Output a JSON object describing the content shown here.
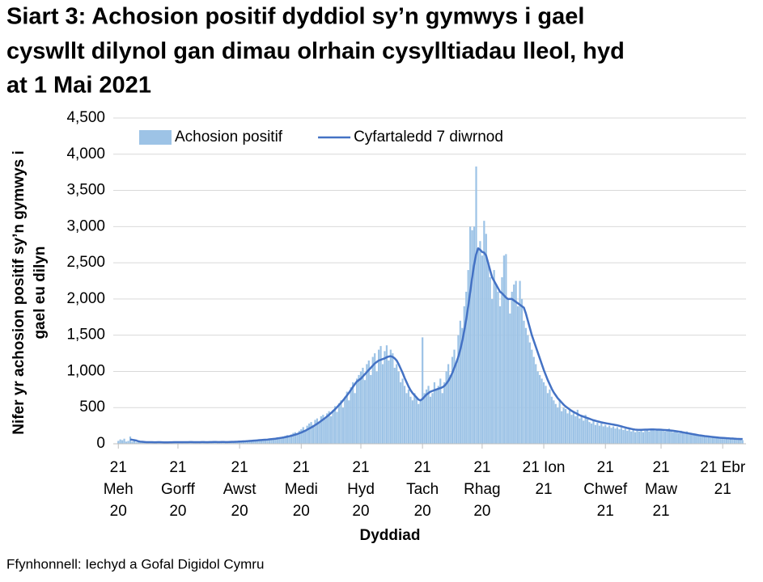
{
  "chart_data": {
    "type": "bar",
    "title": [
      "Siart 3: Achosion positif dyddiol sy’n gymwys i gael",
      "cyswllt dilynol gan dimau olrhain cysylltiadau lleol, hyd",
      "at 1 Mai 2021"
    ],
    "ylabel": [
      "Nifer yr achosion positif sy’n gymwys i",
      "gael eu dilyn"
    ],
    "xlabel": "Dyddiad",
    "source": "Ffynhonnell: Iechyd a Gofal Digidol Cymru",
    "ylim": [
      0,
      4500
    ],
    "yticks": [
      0,
      500,
      {
        "value": 1000,
        "label": "1,000"
      },
      {
        "value": 1500,
        "label": "1,500"
      },
      {
        "value": 2000,
        "label": "2,000"
      },
      {
        "value": 2500,
        "label": "2,500"
      },
      {
        "value": 3000,
        "label": "3,000"
      },
      {
        "value": 3500,
        "label": "3,500"
      },
      {
        "value": 4000,
        "label": "4,000"
      },
      {
        "value": 4500,
        "label": "4,500"
      }
    ],
    "grid": true,
    "legend": "top",
    "categories": [
      "21\nMeh\n20",
      null,
      null,
      null,
      null,
      null,
      null,
      null,
      null,
      null,
      null,
      null,
      null,
      null,
      null,
      null,
      null,
      null,
      null,
      null,
      null,
      null,
      null,
      null,
      null,
      null,
      null,
      null,
      null,
      null,
      "21\nGorff\n20",
      null,
      null,
      null,
      null,
      null,
      null,
      null,
      null,
      null,
      null,
      null,
      null,
      null,
      null,
      null,
      null,
      null,
      null,
      null,
      null,
      null,
      null,
      null,
      null,
      null,
      null,
      null,
      null,
      null,
      null,
      "21\nAwst\n20",
      null,
      null,
      null,
      null,
      null,
      null,
      null,
      null,
      null,
      null,
      null,
      null,
      null,
      null,
      null,
      null,
      null,
      null,
      null,
      null,
      null,
      null,
      null,
      null,
      null,
      null,
      null,
      null,
      null,
      null,
      "21\nMedi\n20",
      null,
      null,
      null,
      null,
      null,
      null,
      null,
      null,
      null,
      null,
      null,
      null,
      null,
      null,
      null,
      null,
      null,
      null,
      null,
      null,
      null,
      null,
      null,
      null,
      null,
      null,
      null,
      null,
      null,
      "21\nHyd\n20",
      null,
      null,
      null,
      null,
      null,
      null,
      null,
      null,
      null,
      null,
      null,
      null,
      null,
      null,
      null,
      null,
      null,
      null,
      null,
      null,
      null,
      null,
      null,
      null,
      null,
      null,
      null,
      null,
      null,
      null,
      "21\nTach\n20",
      null,
      null,
      null,
      null,
      null,
      null,
      null,
      null,
      null,
      null,
      null,
      null,
      null,
      null,
      null,
      null,
      null,
      null,
      null,
      null,
      null,
      null,
      null,
      null,
      null,
      null,
      null,
      null,
      null,
      "21\nRhag\n20",
      null,
      null,
      null,
      null,
      null,
      null,
      null,
      null,
      null,
      null,
      null,
      null,
      null,
      null,
      null,
      null,
      null,
      null,
      null,
      null,
      null,
      null,
      null,
      null,
      null,
      null,
      null,
      null,
      null,
      null,
      "21 Ion\n21",
      null,
      null,
      null,
      null,
      null,
      null,
      null,
      null,
      null,
      null,
      null,
      null,
      null,
      null,
      null,
      null,
      null,
      null,
      null,
      null,
      null,
      null,
      null,
      null,
      null,
      null,
      null,
      null,
      null,
      null,
      "21\nChwef\n21",
      null,
      null,
      null,
      null,
      null,
      null,
      null,
      null,
      null,
      null,
      null,
      null,
      null,
      null,
      null,
      null,
      null,
      null,
      null,
      null,
      null,
      null,
      null,
      null,
      null,
      null,
      null,
      "21\nMaw\n21",
      null,
      null,
      null,
      null,
      null,
      null,
      null,
      null,
      null,
      null,
      null,
      null,
      null,
      null,
      null,
      null,
      null,
      null,
      null,
      null,
      null,
      null,
      null,
      null,
      null,
      null,
      null,
      null,
      null,
      null,
      "21 Ebr\n21",
      null,
      null,
      null,
      null,
      null,
      null,
      null,
      null,
      null,
      null
    ],
    "series": [
      {
        "name": "Achosion positif",
        "type": "bar",
        "color": "#9dc3e6",
        "values": [
          40,
          60,
          50,
          70,
          30,
          40,
          100,
          30,
          40,
          20,
          20,
          30,
          25,
          15,
          20,
          25,
          30,
          20,
          15,
          25,
          30,
          20,
          15,
          10,
          20,
          25,
          20,
          15,
          25,
          30,
          25,
          20,
          15,
          30,
          25,
          20,
          30,
          25,
          20,
          15,
          30,
          25,
          20,
          25,
          30,
          20,
          15,
          25,
          30,
          25,
          20,
          30,
          25,
          20,
          15,
          30,
          25,
          20,
          30,
          35,
          30,
          35,
          30,
          40,
          25,
          35,
          45,
          40,
          50,
          45,
          40,
          55,
          60,
          50,
          45,
          60,
          70,
          65,
          60,
          80,
          90,
          85,
          70,
          100,
          110,
          120,
          100,
          130,
          150,
          160,
          140,
          180,
          200,
          230,
          180,
          250,
          280,
          300,
          260,
          330,
          350,
          300,
          380,
          400,
          340,
          420,
          450,
          380,
          470,
          520,
          440,
          560,
          600,
          500,
          650,
          720,
          600,
          780,
          850,
          700,
          900,
          950,
          1000,
          1050,
          880,
          1100,
          1150,
          950,
          1200,
          1250,
          1000,
          1300,
          1350,
          1100,
          1280,
          1360,
          1150,
          1300,
          1250,
          1050,
          1100,
          1000,
          850,
          900,
          800,
          700,
          750,
          650,
          600,
          700,
          650,
          550,
          600,
          1470,
          700,
          750,
          800,
          650,
          700,
          850,
          750,
          800,
          900,
          700,
          850,
          1000,
          1100,
          950,
          1200,
          1300,
          1100,
          1500,
          1700,
          1600,
          1900,
          2100,
          2400,
          3000,
          2950,
          3000,
          3830,
          2700,
          2800,
          2600,
          3080,
          2900,
          2500,
          2300,
          2000,
          2400,
          2200,
          2100,
          1900,
          2300,
          2600,
          2620,
          2000,
          1800,
          2100,
          2200,
          2250,
          1900,
          2250,
          2000,
          1700,
          1600,
          1500,
          1400,
          1300,
          1200,
          1100,
          1000,
          950,
          900,
          850,
          800,
          700,
          750,
          650,
          600,
          550,
          500,
          600,
          450,
          500,
          480,
          420,
          460,
          400,
          430,
          380,
          470,
          350,
          380,
          320,
          400,
          340,
          300,
          280,
          330,
          260,
          290,
          250,
          280,
          240,
          260,
          230,
          250,
          220,
          240,
          210,
          230,
          200,
          220,
          190,
          210,
          180,
          200,
          170,
          190,
          160,
          180,
          170,
          190,
          160,
          180,
          200,
          170,
          190,
          210,
          180,
          200,
          190,
          180,
          200,
          170,
          190,
          210,
          180,
          160,
          190,
          170,
          150,
          180,
          160,
          140,
          170,
          150,
          130,
          140,
          120,
          130,
          110,
          120,
          100,
          110,
          90,
          100,
          85,
          95,
          80,
          90,
          75,
          85,
          80,
          70,
          90,
          60,
          75,
          85,
          65,
          70,
          55,
          60,
          50
        ]
      },
      {
        "name": "Cyfartaledd 7 diwrnod",
        "type": "line",
        "color": "#4472c4",
        "values": [
          null,
          null,
          null,
          null,
          null,
          null,
          60,
          55,
          50,
          45,
          35,
          30,
          28,
          25,
          22,
          22,
          22,
          22,
          21,
          21,
          22,
          22,
          21,
          20,
          20,
          20,
          21,
          21,
          22,
          22,
          23,
          23,
          22,
          22,
          23,
          23,
          24,
          24,
          23,
          22,
          22,
          23,
          24,
          24,
          23,
          23,
          24,
          24,
          25,
          25,
          24,
          24,
          25,
          25,
          24,
          24,
          25,
          26,
          27,
          28,
          29,
          31,
          32,
          34,
          35,
          37,
          39,
          41,
          43,
          45,
          47,
          50,
          52,
          54,
          56,
          58,
          61,
          64,
          67,
          70,
          74,
          78,
          82,
          87,
          92,
          98,
          104,
          110,
          118,
          126,
          135,
          145,
          155,
          168,
          180,
          195,
          210,
          225,
          240,
          258,
          276,
          295,
          315,
          335,
          355,
          378,
          400,
          425,
          450,
          478,
          505,
          535,
          565,
          598,
          632,
          668,
          705,
          745,
          785,
          825,
          860,
          880,
          900,
          930,
          960,
          990,
          1020,
          1050,
          1080,
          1110,
          1130,
          1150,
          1160,
          1170,
          1180,
          1195,
          1205,
          1210,
          1200,
          1180,
          1150,
          1100,
          1040,
          980,
          910,
          850,
          790,
          740,
          700,
          670,
          640,
          610,
          600,
          620,
          650,
          680,
          700,
          720,
          730,
          740,
          750,
          760,
          770,
          780,
          800,
          830,
          870,
          920,
          980,
          1050,
          1120,
          1200,
          1300,
          1420,
          1560,
          1720,
          1900,
          2100,
          2300,
          2480,
          2620,
          2700,
          2680,
          2650,
          2640,
          2600,
          2500,
          2400,
          2300,
          2250,
          2200,
          2150,
          2100,
          2080,
          2050,
          2020,
          2000,
          2000,
          2000,
          1980,
          1960,
          1940,
          1920,
          1900,
          1880,
          1800,
          1700,
          1600,
          1500,
          1420,
          1340,
          1260,
          1180,
          1100,
          1020,
          950,
          880,
          820,
          760,
          710,
          670,
          630,
          600,
          570,
          540,
          515,
          495,
          475,
          455,
          440,
          425,
          410,
          395,
          385,
          375,
          365,
          355,
          345,
          335,
          325,
          318,
          310,
          303,
          296,
          290,
          285,
          280,
          275,
          270,
          265,
          260,
          255,
          248,
          240,
          232,
          225,
          218,
          212,
          206,
          200,
          196,
          194,
          193,
          193,
          194,
          195,
          196,
          197,
          198,
          198,
          197,
          196,
          195,
          194,
          192,
          190,
          188,
          186,
          183,
          180,
          176,
          172,
          168,
          163,
          158,
          153,
          148,
          143,
          138,
          133,
          128,
          123,
          118,
          114,
          110,
          106,
          103,
          100,
          97,
          94,
          91,
          88,
          85,
          83,
          81,
          79,
          77,
          75,
          73,
          72,
          70,
          68,
          67,
          66,
          65
        ]
      }
    ]
  }
}
